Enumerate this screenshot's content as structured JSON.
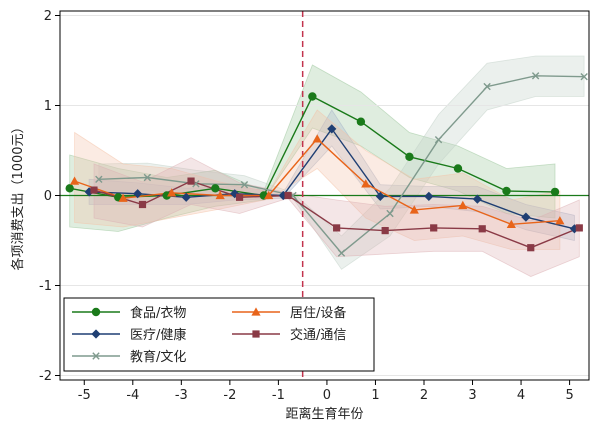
{
  "chart_data": {
    "type": "line",
    "xlabel": "距离生育年份",
    "ylabel": "各项消费支出（1000元）",
    "xlim": [
      -5.5,
      5.4
    ],
    "ylim": [
      -2.05,
      2.05
    ],
    "xticks": [
      -5,
      -4,
      -3,
      -2,
      -1,
      0,
      1,
      2,
      3,
      4,
      5
    ],
    "xtick_labels": [
      "-5",
      "-4",
      "-3",
      "-2",
      "-1",
      "0",
      "1",
      "2",
      "3",
      "4",
      "5"
    ],
    "yticks": [
      -2,
      -1,
      0,
      1,
      2
    ],
    "ytick_labels": [
      "-2",
      "-1",
      "0",
      "1",
      "2"
    ],
    "reference_x": -0.5,
    "reference_y": 0,
    "legend_position": "bottom-left",
    "series": [
      {
        "name": "食品/衣物",
        "color": "#1a7a1a",
        "marker": "circle",
        "x": [
          -5.3,
          -4.3,
          -3.3,
          -2.3,
          -1.3,
          -0.3,
          0.7,
          1.7,
          2.7,
          3.7,
          4.7
        ],
        "y": [
          0.08,
          -0.02,
          0.0,
          0.08,
          0.0,
          1.1,
          0.82,
          0.43,
          0.3,
          0.05,
          0.04
        ],
        "lower": [
          -0.35,
          -0.4,
          -0.25,
          -0.12,
          -0.05,
          0.75,
          0.55,
          0.2,
          0.05,
          -0.2,
          -0.25
        ],
        "upper": [
          0.45,
          0.3,
          0.2,
          0.28,
          0.05,
          1.45,
          1.15,
          0.7,
          0.55,
          0.3,
          0.35
        ],
        "band_color": "#9dc79d"
      },
      {
        "name": "医疗/健康",
        "color": "#1f3f73",
        "marker": "diamond",
        "x": [
          -4.9,
          -3.9,
          -2.9,
          -1.9,
          -0.9,
          0.1,
          1.1,
          2.1,
          3.1,
          4.1,
          5.1
        ],
        "y": [
          0.04,
          0.02,
          -0.02,
          0.02,
          0.0,
          0.74,
          -0.01,
          -0.01,
          -0.04,
          -0.24,
          -0.37
        ],
        "lower": [
          -0.1,
          -0.1,
          -0.1,
          -0.05,
          -0.03,
          0.55,
          -0.15,
          -0.12,
          -0.18,
          -0.38,
          -0.5
        ],
        "upper": [
          0.18,
          0.14,
          0.08,
          0.1,
          0.03,
          0.95,
          0.12,
          0.1,
          0.1,
          -0.1,
          -0.22
        ],
        "band_color": "#a7b4c9"
      },
      {
        "name": "教育/文化",
        "color": "#7f9a8d",
        "marker": "x",
        "x": [
          -4.7,
          -3.7,
          -2.7,
          -1.7,
          -0.7,
          0.3,
          1.3,
          2.3,
          3.3,
          4.3,
          5.3
        ],
        "y": [
          0.18,
          0.2,
          0.13,
          0.12,
          0.0,
          -0.64,
          -0.2,
          0.62,
          1.21,
          1.33,
          1.32
        ],
        "lower": [
          0.05,
          0.06,
          0.0,
          0.02,
          -0.03,
          -0.82,
          -0.45,
          0.35,
          0.95,
          1.1,
          1.1
        ],
        "upper": [
          0.35,
          0.36,
          0.28,
          0.22,
          0.03,
          -0.45,
          0.08,
          0.9,
          1.47,
          1.55,
          1.55
        ],
        "band_color": "#c2d1c8"
      },
      {
        "name": "居住/设备",
        "color": "#e8641a",
        "marker": "triangle",
        "x": [
          -5.2,
          -4.2,
          -3.2,
          -2.2,
          -1.2,
          -0.2,
          0.8,
          1.8,
          2.8,
          3.8,
          4.8
        ],
        "y": [
          0.16,
          -0.03,
          0.03,
          0.0,
          0.0,
          0.63,
          0.13,
          -0.16,
          -0.11,
          -0.32,
          -0.28
        ],
        "lower": [
          -0.3,
          -0.35,
          -0.25,
          -0.15,
          -0.04,
          0.3,
          -0.25,
          -0.5,
          -0.45,
          -0.6,
          -0.6
        ],
        "upper": [
          0.7,
          0.35,
          0.3,
          0.15,
          0.04,
          0.95,
          0.5,
          0.18,
          0.25,
          -0.05,
          0.05
        ],
        "band_color": "#f4c2a8"
      },
      {
        "name": "交通/通信",
        "color": "#8a3a46",
        "marker": "square",
        "x": [
          -4.8,
          -3.8,
          -2.8,
          -1.8,
          -0.8,
          0.2,
          1.2,
          2.2,
          3.2,
          4.2,
          5.2
        ],
        "y": [
          0.06,
          -0.1,
          0.16,
          -0.02,
          0.0,
          -0.36,
          -0.39,
          -0.36,
          -0.37,
          -0.58,
          -0.36
        ],
        "lower": [
          -0.25,
          -0.35,
          -0.1,
          -0.2,
          -0.03,
          -0.68,
          -0.65,
          -0.62,
          -0.62,
          -0.9,
          -0.68
        ],
        "upper": [
          0.35,
          0.15,
          0.42,
          0.14,
          0.03,
          -0.05,
          -0.12,
          -0.1,
          -0.12,
          -0.28,
          -0.05
        ],
        "band_color": "#dcb0b5"
      }
    ]
  }
}
